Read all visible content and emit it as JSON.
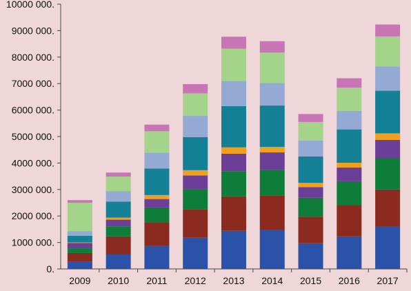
{
  "chart_data": {
    "type": "bar",
    "stacked": true,
    "categories": [
      "2009",
      "2010",
      "2011",
      "2012",
      "2013",
      "2014",
      "2015",
      "2016",
      "2017"
    ],
    "yticks": [
      "0.",
      "1000 000.",
      "2000 000.",
      "3000 000.",
      "4000 000.",
      "5000 000.",
      "6000 000.",
      "7000 000.",
      "8000 000.",
      "9000 000.",
      "10000 000."
    ],
    "ylim": [
      0,
      10000000
    ],
    "grid": false,
    "legend": "none",
    "background": "#efd6d8",
    "series": [
      {
        "color": "#2a52a8",
        "values": [
          270000,
          560000,
          870000,
          1180000,
          1440000,
          1470000,
          970000,
          1230000,
          1600000
        ]
      },
      {
        "color": "#8b2a1e",
        "values": [
          330000,
          670000,
          890000,
          1080000,
          1300000,
          1300000,
          1000000,
          1190000,
          1400000
        ]
      },
      {
        "color": "#0e7d3a",
        "values": [
          180000,
          380000,
          560000,
          750000,
          950000,
          970000,
          720000,
          890000,
          1180000
        ]
      },
      {
        "color": "#6b3e97",
        "values": [
          200000,
          250000,
          320000,
          520000,
          660000,
          660000,
          400000,
          520000,
          690000
        ]
      },
      {
        "color": "#f0a020",
        "values": [
          20000,
          80000,
          150000,
          200000,
          240000,
          210000,
          160000,
          180000,
          250000
        ]
      },
      {
        "color": "#138096",
        "values": [
          250000,
          600000,
          1000000,
          1250000,
          1560000,
          1560000,
          1000000,
          1260000,
          1610000
        ]
      },
      {
        "color": "#94a9d3",
        "values": [
          170000,
          400000,
          600000,
          800000,
          950000,
          850000,
          600000,
          700000,
          920000
        ]
      },
      {
        "color": "#a3d48a",
        "values": [
          1080000,
          550000,
          810000,
          850000,
          1220000,
          1150000,
          700000,
          880000,
          1130000
        ]
      },
      {
        "color": "#c875b6",
        "values": [
          100000,
          150000,
          250000,
          350000,
          450000,
          430000,
          300000,
          350000,
          450000
        ]
      }
    ]
  }
}
